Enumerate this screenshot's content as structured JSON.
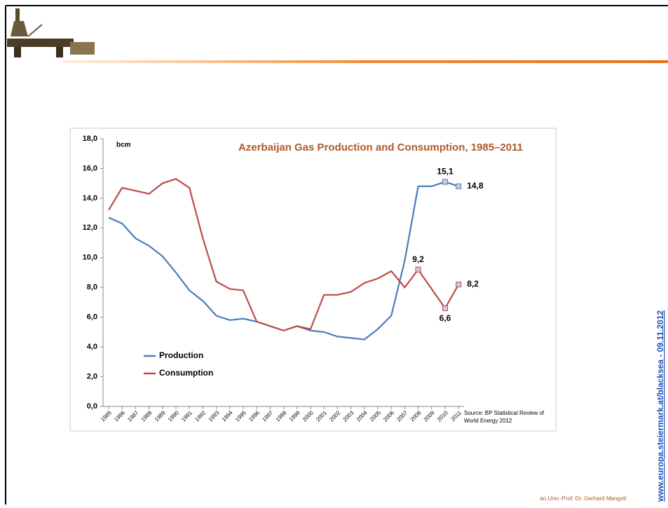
{
  "chart_data": {
    "type": "line",
    "title": "Azerbaijan Gas Production and Consumption, 1985–2011",
    "y_unit": "bcm",
    "source": [
      "Source: BP Statistical Review of",
      "World Energy 2012"
    ],
    "categories": [
      "1985",
      "1986",
      "1987",
      "1988",
      "1989",
      "1990",
      "1991",
      "1992",
      "1993",
      "1994",
      "1995",
      "1996",
      "1997",
      "1998",
      "1999",
      "2000",
      "2001",
      "2002",
      "2003",
      "2004",
      "2005",
      "2006",
      "2007",
      "2008",
      "2009",
      "2010",
      "2011"
    ],
    "series": [
      {
        "name": "Production",
        "color": "#4a7ebb",
        "values": [
          12.7,
          12.3,
          11.3,
          10.8,
          10.1,
          9.0,
          7.8,
          7.1,
          6.1,
          5.8,
          5.9,
          5.7,
          5.4,
          5.1,
          5.4,
          5.1,
          5.0,
          4.7,
          4.6,
          4.5,
          5.2,
          6.1,
          9.8,
          14.8,
          14.8,
          15.1,
          14.8
        ],
        "value_labels": [
          null,
          null,
          null,
          null,
          null,
          null,
          null,
          null,
          null,
          null,
          null,
          null,
          null,
          null,
          null,
          null,
          null,
          null,
          null,
          null,
          null,
          null,
          null,
          null,
          null,
          "15,1",
          "14,8"
        ]
      },
      {
        "name": "Consumption",
        "color": "#be4b48",
        "values": [
          13.2,
          14.7,
          14.5,
          14.3,
          15.0,
          15.3,
          14.7,
          11.3,
          8.4,
          7.9,
          7.8,
          5.7,
          5.4,
          5.1,
          5.4,
          5.2,
          7.5,
          7.5,
          7.7,
          8.3,
          8.6,
          9.1,
          8.0,
          9.2,
          7.9,
          6.6,
          8.2
        ],
        "value_labels": [
          null,
          null,
          null,
          null,
          null,
          null,
          null,
          null,
          null,
          null,
          null,
          null,
          null,
          null,
          null,
          null,
          null,
          null,
          null,
          null,
          null,
          null,
          null,
          "9,2",
          null,
          "6,6",
          "8,2"
        ]
      }
    ],
    "ylim": [
      0,
      18
    ],
    "yticks": [
      {
        "value": 0,
        "label": "0,0"
      },
      {
        "value": 2,
        "label": "2,0"
      },
      {
        "value": 4,
        "label": "4,0"
      },
      {
        "value": 6,
        "label": "6,0"
      },
      {
        "value": 8,
        "label": "8,0"
      },
      {
        "value": 10,
        "label": "10,0"
      },
      {
        "value": 12,
        "label": "12,0"
      },
      {
        "value": 14,
        "label": "14,0"
      },
      {
        "value": 16,
        "label": "16,0"
      },
      {
        "value": 18,
        "label": "18,0"
      }
    ],
    "grid": false,
    "legend": "lower left"
  },
  "footer": "ao.Univ.-Prof. Dr. Gerhard Mangott",
  "side_text": "www.europa.steiermark.at/blacksea - 09.11.2012"
}
